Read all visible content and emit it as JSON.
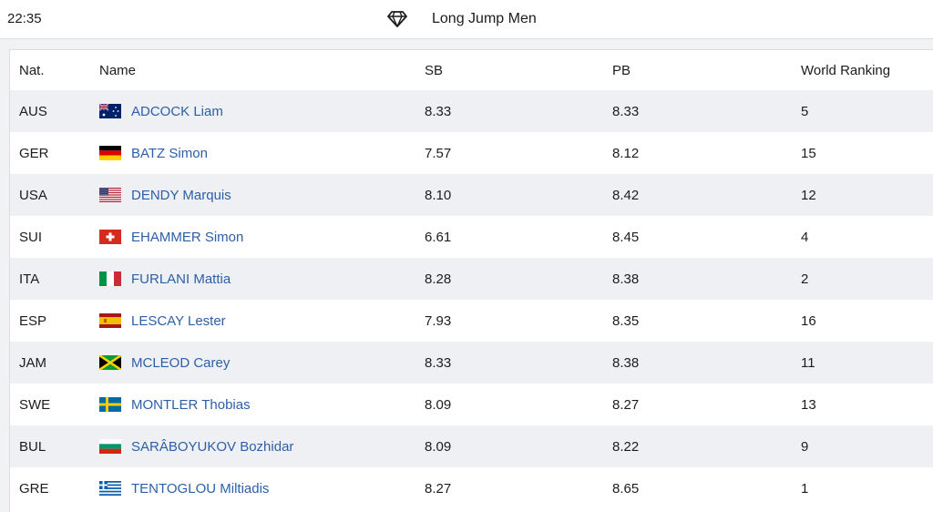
{
  "header": {
    "time": "22:35",
    "title": "Long Jump Men",
    "icon": "diamond-icon"
  },
  "table": {
    "columns": [
      "Nat.",
      "Name",
      "SB",
      "PB",
      "World Ranking"
    ],
    "rows": [
      {
        "nat": "AUS",
        "flag": "flag-aus",
        "name": "ADCOCK Liam",
        "sb": "8.33",
        "pb": "8.33",
        "wr": "5"
      },
      {
        "nat": "GER",
        "flag": "flag-ger",
        "name": "BATZ Simon",
        "sb": "7.57",
        "pb": "8.12",
        "wr": "15"
      },
      {
        "nat": "USA",
        "flag": "flag-usa",
        "name": "DENDY Marquis",
        "sb": "8.10",
        "pb": "8.42",
        "wr": "12"
      },
      {
        "nat": "SUI",
        "flag": "flag-sui",
        "name": "EHAMMER Simon",
        "sb": "6.61",
        "pb": "8.45",
        "wr": "4"
      },
      {
        "nat": "ITA",
        "flag": "flag-ita",
        "name": "FURLANI Mattia",
        "sb": "8.28",
        "pb": "8.38",
        "wr": "2"
      },
      {
        "nat": "ESP",
        "flag": "flag-esp",
        "name": "LESCAY Lester",
        "sb": "7.93",
        "pb": "8.35",
        "wr": "16"
      },
      {
        "nat": "JAM",
        "flag": "flag-jam",
        "name": "MCLEOD Carey",
        "sb": "8.33",
        "pb": "8.38",
        "wr": "11"
      },
      {
        "nat": "SWE",
        "flag": "flag-swe",
        "name": "MONTLER Thobias",
        "sb": "8.09",
        "pb": "8.27",
        "wr": "13"
      },
      {
        "nat": "BUL",
        "flag": "flag-bul",
        "name": "SARÂBOYUKOV Bozhidar",
        "sb": "8.09",
        "pb": "8.22",
        "wr": "9"
      },
      {
        "nat": "GRE",
        "flag": "flag-gre",
        "name": "TENTOGLOU Miltiadis",
        "sb": "8.27",
        "pb": "8.65",
        "wr": "1"
      }
    ]
  },
  "colors": {
    "link": "#2c5fa8",
    "row_alt": "#eef0f4",
    "background": "#f1f2f4"
  }
}
